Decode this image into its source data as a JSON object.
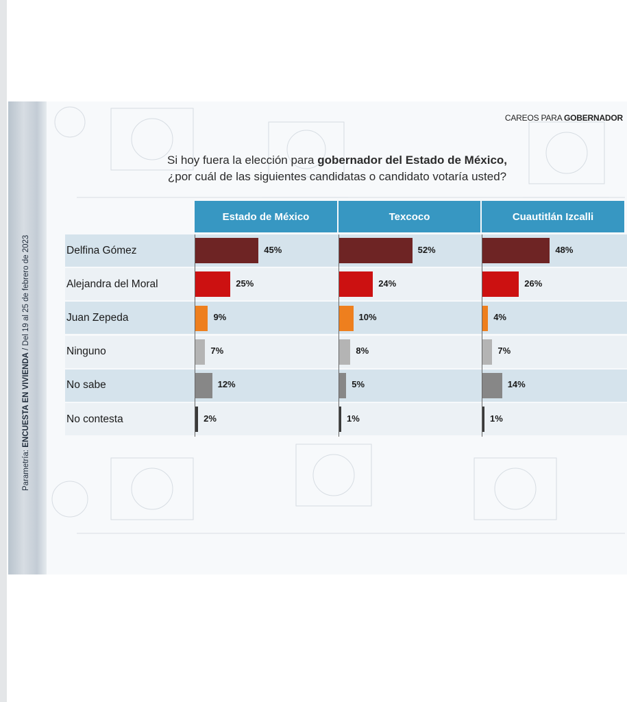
{
  "tag": {
    "prefix": "CAREOS PARA ",
    "bold": "GOBERNADOR"
  },
  "question": {
    "line1_a": "Si hoy fuera  la elección para ",
    "line1_b": "gobernador  del Estado de México,",
    "line2": "¿por cuál de las siguientes  candidatas o candidato votaría usted?"
  },
  "side_note": {
    "prefix": "Parametría: ",
    "bold": "ENCUESTA EN VIVIENDA",
    "suffix": " / Del 19 al 25 de febrero de 2023"
  },
  "colors": {
    "header": "#3797c2",
    "Delfina Gómez": "#6e2424",
    "Alejandra del Moral": "#cc1111",
    "Juan Zepeda": "#ee7f1e",
    "Ninguno": "#b4b4b4",
    "No sabe": "#878787",
    "No contesta": "#3a3a3a"
  },
  "chart_data": {
    "type": "bar",
    "orientation": "horizontal",
    "unit": "%",
    "categories": [
      "Delfina Gómez",
      "Alejandra del Moral",
      "Juan Zepeda",
      "Ninguno",
      "No sabe",
      "No contesta"
    ],
    "panels": [
      {
        "name": "Estado de México",
        "values": [
          45,
          25,
          9,
          7,
          12,
          2
        ]
      },
      {
        "name": "Texcoco",
        "values": [
          52,
          24,
          10,
          8,
          5,
          1
        ]
      },
      {
        "name": "Cuautitlán  Izcalli",
        "values": [
          48,
          26,
          4,
          7,
          14,
          1
        ]
      }
    ]
  }
}
